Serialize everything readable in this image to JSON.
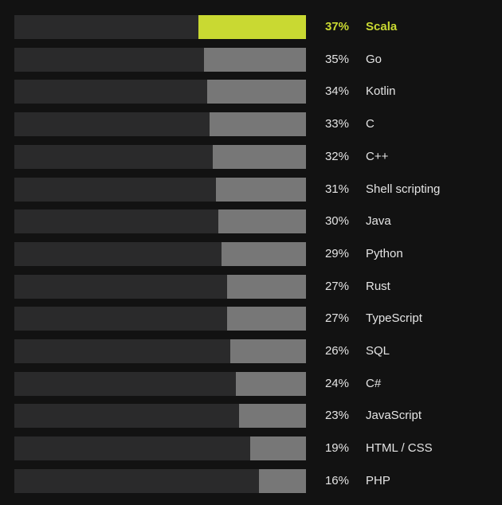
{
  "chart_data": {
    "type": "bar",
    "orientation": "horizontal",
    "categories": [
      "Scala",
      "Go",
      "Kotlin",
      "C",
      "C++",
      "Shell scripting",
      "Java",
      "Python",
      "Rust",
      "TypeScript",
      "SQL",
      "C#",
      "JavaScript",
      "HTML / CSS",
      "PHP"
    ],
    "values": [
      37,
      35,
      34,
      33,
      32,
      31,
      30,
      29,
      27,
      27,
      26,
      24,
      23,
      19,
      16
    ],
    "value_labels": [
      "37%",
      "35%",
      "34%",
      "33%",
      "32%",
      "31%",
      "30%",
      "29%",
      "27%",
      "27%",
      "26%",
      "24%",
      "23%",
      "19%",
      "16%"
    ],
    "xlim": [
      0,
      100
    ],
    "grid": false,
    "legend": "none",
    "highlight_category": "Scala",
    "colors": {
      "background": "#121212",
      "track": "#2a2a2b",
      "bar": "#777777",
      "highlight": "#c9d932",
      "text": "#e4e4e4"
    }
  }
}
